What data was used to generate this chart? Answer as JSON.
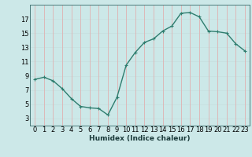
{
  "x": [
    0,
    1,
    2,
    3,
    4,
    5,
    6,
    7,
    8,
    9,
    10,
    11,
    12,
    13,
    14,
    15,
    16,
    17,
    18,
    19,
    20,
    21,
    22,
    23
  ],
  "y": [
    8.5,
    8.8,
    8.3,
    7.2,
    5.8,
    4.7,
    4.5,
    4.4,
    3.5,
    6.0,
    10.5,
    12.3,
    13.7,
    14.2,
    15.3,
    16.0,
    17.8,
    17.9,
    17.3,
    15.3,
    15.2,
    15.0,
    13.5,
    12.5
  ],
  "line_color": "#2e7d6e",
  "bg_color": "#cce8e8",
  "xlabel": "Humidex (Indice chaleur)",
  "ylim": [
    2,
    19
  ],
  "xlim": [
    -0.5,
    23.5
  ],
  "yticks": [
    3,
    5,
    7,
    9,
    11,
    13,
    15,
    17
  ],
  "xticks": [
    0,
    1,
    2,
    3,
    4,
    5,
    6,
    7,
    8,
    9,
    10,
    11,
    12,
    13,
    14,
    15,
    16,
    17,
    18,
    19,
    20,
    21,
    22,
    23
  ],
  "marker": "+",
  "marker_size": 3,
  "line_width": 1.0,
  "font_size": 6.0,
  "xlabel_fontsize": 6.5,
  "hgrid_color": "#c8e0e0",
  "vgrid_color": "#e0b0b0"
}
